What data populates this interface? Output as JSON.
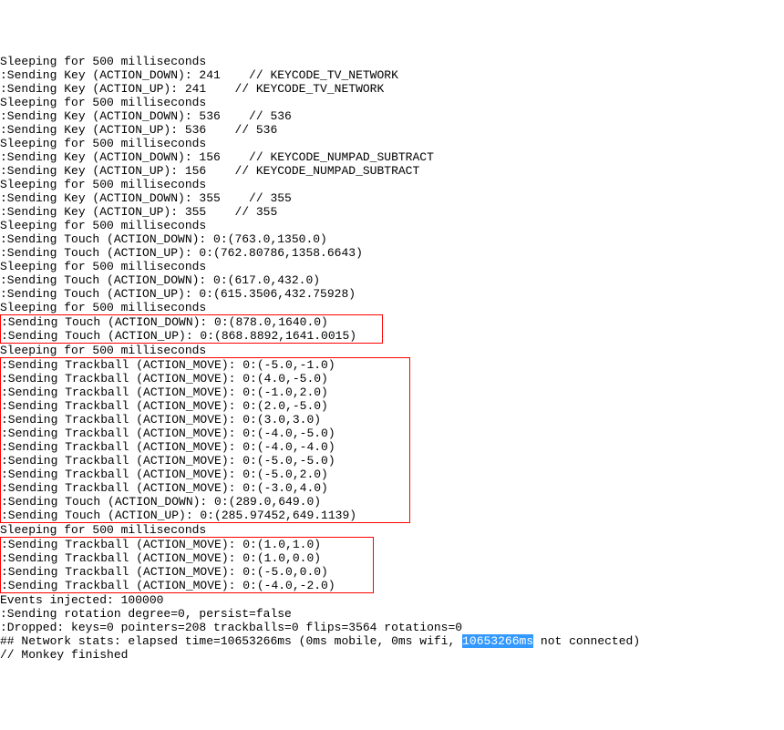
{
  "lines": [
    {
      "text": "Sleeping for 500 milliseconds",
      "group": 0
    },
    {
      "text": ":Sending Key (ACTION_DOWN): 241    // KEYCODE_TV_NETWORK",
      "group": 0
    },
    {
      "text": ":Sending Key (ACTION_UP): 241    // KEYCODE_TV_NETWORK",
      "group": 0
    },
    {
      "text": "Sleeping for 500 milliseconds",
      "group": 0
    },
    {
      "text": ":Sending Key (ACTION_DOWN): 536    // 536",
      "group": 0
    },
    {
      "text": ":Sending Key (ACTION_UP): 536    // 536",
      "group": 0
    },
    {
      "text": "Sleeping for 500 milliseconds",
      "group": 0
    },
    {
      "text": ":Sending Key (ACTION_DOWN): 156    // KEYCODE_NUMPAD_SUBTRACT",
      "group": 0
    },
    {
      "text": ":Sending Key (ACTION_UP): 156    // KEYCODE_NUMPAD_SUBTRACT",
      "group": 0
    },
    {
      "text": "Sleeping for 500 milliseconds",
      "group": 0
    },
    {
      "text": ":Sending Key (ACTION_DOWN): 355    // 355",
      "group": 0
    },
    {
      "text": ":Sending Key (ACTION_UP): 355    // 355",
      "group": 0
    },
    {
      "text": "Sleeping for 500 milliseconds",
      "group": 0
    },
    {
      "text": ":Sending Touch (ACTION_DOWN): 0:(763.0,1350.0)",
      "group": 0
    },
    {
      "text": ":Sending Touch (ACTION_UP): 0:(762.80786,1358.6643)",
      "group": 0
    },
    {
      "text": "Sleeping for 500 milliseconds",
      "group": 0
    },
    {
      "text": ":Sending Touch (ACTION_DOWN): 0:(617.0,432.0)",
      "group": 0
    },
    {
      "text": ":Sending Touch (ACTION_UP): 0:(615.3506,432.75928)",
      "group": 0
    },
    {
      "text": "Sleeping for 500 milliseconds",
      "group": 0
    },
    {
      "text": ":Sending Touch (ACTION_DOWN): 0:(878.0,1640.0)",
      "group": 1
    },
    {
      "text": ":Sending Touch (ACTION_UP): 0:(868.8892,1641.0015)",
      "group": 1
    },
    {
      "text": "Sleeping for 500 milliseconds",
      "group": 0
    },
    {
      "text": ":Sending Trackball (ACTION_MOVE): 0:(-5.0,-1.0)",
      "group": 2
    },
    {
      "text": ":Sending Trackball (ACTION_MOVE): 0:(4.0,-5.0)",
      "group": 2
    },
    {
      "text": ":Sending Trackball (ACTION_MOVE): 0:(-1.0,2.0)",
      "group": 2
    },
    {
      "text": ":Sending Trackball (ACTION_MOVE): 0:(2.0,-5.0)",
      "group": 2
    },
    {
      "text": ":Sending Trackball (ACTION_MOVE): 0:(3.0,3.0)",
      "group": 2
    },
    {
      "text": ":Sending Trackball (ACTION_MOVE): 0:(-4.0,-5.0)",
      "group": 2
    },
    {
      "text": ":Sending Trackball (ACTION_MOVE): 0:(-4.0,-4.0)",
      "group": 2
    },
    {
      "text": ":Sending Trackball (ACTION_MOVE): 0:(-5.0,-5.0)",
      "group": 2
    },
    {
      "text": ":Sending Trackball (ACTION_MOVE): 0:(-5.0,2.0)",
      "group": 2
    },
    {
      "text": ":Sending Trackball (ACTION_MOVE): 0:(-3.0,4.0)",
      "group": 2
    },
    {
      "text": ":Sending Touch (ACTION_DOWN): 0:(289.0,649.0)",
      "group": 2
    },
    {
      "text": ":Sending Touch (ACTION_UP): 0:(285.97452,649.1139)",
      "group": 2
    },
    {
      "text": "Sleeping for 500 milliseconds",
      "group": 0
    },
    {
      "text": ":Sending Trackball (ACTION_MOVE): 0:(1.0,1.0)",
      "group": 3
    },
    {
      "text": ":Sending Trackball (ACTION_MOVE): 0:(1.0,0.0)",
      "group": 3
    },
    {
      "text": ":Sending Trackball (ACTION_MOVE): 0:(-5.0,0.0)",
      "group": 3
    },
    {
      "text": ":Sending Trackball (ACTION_MOVE): 0:(-4.0,-2.0)",
      "group": 3
    },
    {
      "text": "Events injected: 100000",
      "group": 0
    },
    {
      "text": ":Sending rotation degree=0, persist=false",
      "group": 0
    },
    {
      "text": ":Dropped: keys=0 pointers=208 trackballs=0 flips=3564 rotations=0",
      "group": 0
    }
  ],
  "network_line": {
    "prefix": "## Network stats: elapsed time=10653266ms (0ms mobile, 0ms wifi, ",
    "highlighted": "10653266ms",
    "suffix": " not connected)"
  },
  "final_line": "// Monkey finished",
  "colors": {
    "text": "#000000",
    "background": "#ffffff",
    "box_border": "#ff0000",
    "highlight_bg": "#3399ff",
    "highlight_fg": "#ffffff"
  },
  "box_widths": {
    "1": "420px",
    "2": "450px",
    "3": "410px"
  }
}
